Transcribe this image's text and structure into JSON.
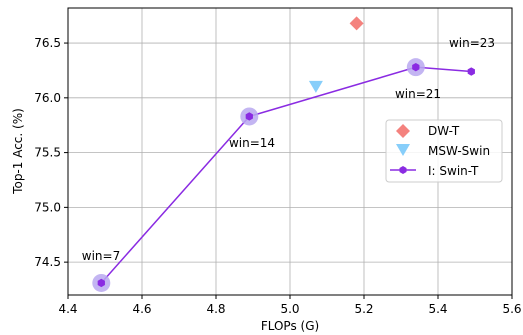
{
  "chart_data": {
    "type": "scatter",
    "xlabel": "FLOPs (G)",
    "ylabel": "Top-1 Acc. (%)",
    "xlim": [
      4.4,
      5.6
    ],
    "ylim": [
      74.2,
      76.82
    ],
    "x_ticks": [
      "4.4",
      "4.6",
      "4.8",
      "5.0",
      "5.2",
      "5.4",
      "5.6"
    ],
    "y_ticks": [
      "74.5",
      "75.0",
      "75.5",
      "76.0",
      "76.5"
    ],
    "grid": true,
    "legend_position": "center-right",
    "series": [
      {
        "name": "DW-T",
        "marker": "diamond",
        "color": "#f4827e",
        "points": [
          {
            "x": 5.18,
            "y": 76.68
          }
        ]
      },
      {
        "name": "MSW-Swin",
        "marker": "triangle-down",
        "color": "#87cefa",
        "points": [
          {
            "x": 5.07,
            "y": 76.1
          }
        ]
      },
      {
        "name": "I: Swin-T",
        "marker": "hexagon",
        "color": "#8a2be2",
        "halo_color": "#b8a8f0",
        "line": true,
        "points": [
          {
            "x": 4.49,
            "y": 74.31,
            "highlight": true
          },
          {
            "x": 4.89,
            "y": 75.83,
            "highlight": true
          },
          {
            "x": 5.34,
            "y": 76.28,
            "highlight": true
          },
          {
            "x": 5.49,
            "y": 76.24,
            "highlight": false
          }
        ]
      }
    ],
    "annotations": [
      {
        "text": "win=7"
      },
      {
        "text": "win=14"
      },
      {
        "text": "win=21"
      },
      {
        "text": "win=23"
      }
    ]
  }
}
